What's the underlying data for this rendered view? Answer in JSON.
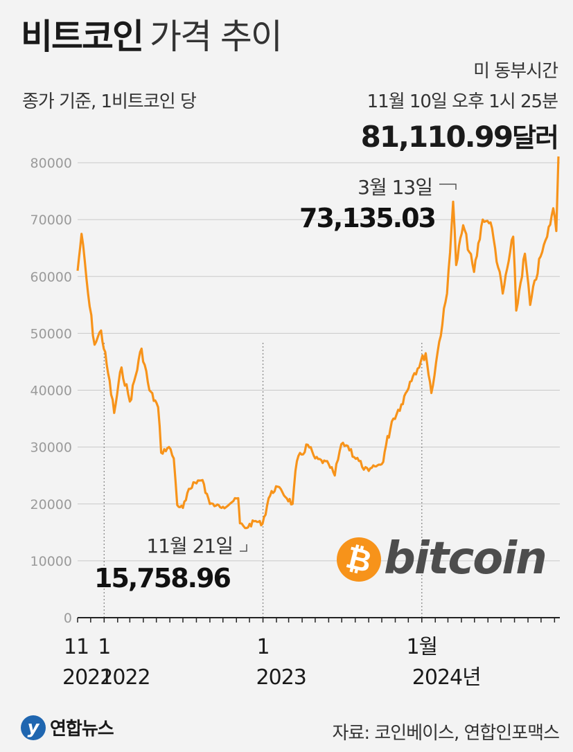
{
  "header": {
    "title_bold": "비트코인",
    "title_light": "가격 추이",
    "subtitle": "종가 기준, 1비트코인 당",
    "note_line1": "미 동부시간",
    "note_line2": "11월 10일 오후 1시 25분",
    "note_value": "81,110.99",
    "note_unit": "달러"
  },
  "annotations": {
    "peak_date": "3월 13일",
    "peak_value": "73,135.03",
    "low_date": "11월 21일",
    "low_value": "15,758.96"
  },
  "logo": {
    "symbol": "₿",
    "text": "bitcoin"
  },
  "footer": {
    "brand": "연합뉴스",
    "source": "자료: 코인베이스, 연합인포맥스"
  },
  "chart_data": {
    "type": "line",
    "line_color": "#f7931a",
    "ylim": [
      0,
      80000
    ],
    "yticks": [
      "0",
      "10000",
      "20000",
      "30000",
      "40000",
      "50000",
      "60000",
      "70000",
      "80000"
    ],
    "xtick_labels": [
      {
        "month": "11",
        "year": "2021"
      },
      {
        "month": "1",
        "year": "2022"
      },
      {
        "month": "1",
        "year": "2023"
      },
      {
        "month": "1월",
        "year": "2024년"
      }
    ],
    "x": [
      "2021-11-01",
      "2021-11-10",
      "2021-11-25",
      "2021-12-10",
      "2021-12-25",
      "2022-01-10",
      "2022-01-24",
      "2022-02-10",
      "2022-03-01",
      "2022-03-28",
      "2022-04-15",
      "2022-05-05",
      "2022-05-12",
      "2022-05-30",
      "2022-06-10",
      "2022-06-18",
      "2022-07-01",
      "2022-07-25",
      "2022-08-15",
      "2022-09-01",
      "2022-09-15",
      "2022-10-01",
      "2022-10-25",
      "2022-11-05",
      "2022-11-09",
      "2022-11-21",
      "2022-12-15",
      "2022-12-31",
      "2023-01-14",
      "2023-01-31",
      "2023-02-15",
      "2023-03-10",
      "2023-03-20",
      "2023-04-14",
      "2023-05-01",
      "2023-06-01",
      "2023-06-15",
      "2023-06-30",
      "2023-07-15",
      "2023-08-17",
      "2023-09-01",
      "2023-09-15",
      "2023-10-01",
      "2023-10-24",
      "2023-11-15",
      "2023-12-05",
      "2023-12-15",
      "2024-01-10",
      "2024-01-23",
      "2024-02-10",
      "2024-02-28",
      "2024-03-13",
      "2024-03-20",
      "2024-04-05",
      "2024-04-30",
      "2024-05-20",
      "2024-06-07",
      "2024-07-05",
      "2024-07-29",
      "2024-08-05",
      "2024-08-25",
      "2024-09-06",
      "2024-09-30",
      "2024-10-15",
      "2024-10-29",
      "2024-11-05",
      "2024-11-10"
    ],
    "values": [
      61000,
      67500,
      57000,
      48000,
      50500,
      43000,
      36000,
      44000,
      38000,
      47300,
      40000,
      37000,
      29000,
      30000,
      28000,
      19800,
      19300,
      23800,
      24200,
      20000,
      19700,
      19500,
      20500,
      21000,
      16600,
      15758.96,
      17000,
      16500,
      21000,
      23100,
      22000,
      20000,
      27500,
      30400,
      28000,
      27000,
      25000,
      30500,
      30200,
      26500,
      25800,
      26600,
      27000,
      34500,
      37500,
      41500,
      43000,
      46500,
      39500,
      48500,
      57000,
      73135.03,
      62000,
      69000,
      60800,
      70000,
      69500,
      57000,
      67000,
      54000,
      64000,
      55000,
      63500,
      67000,
      72000,
      68000,
      81110.99
    ]
  }
}
